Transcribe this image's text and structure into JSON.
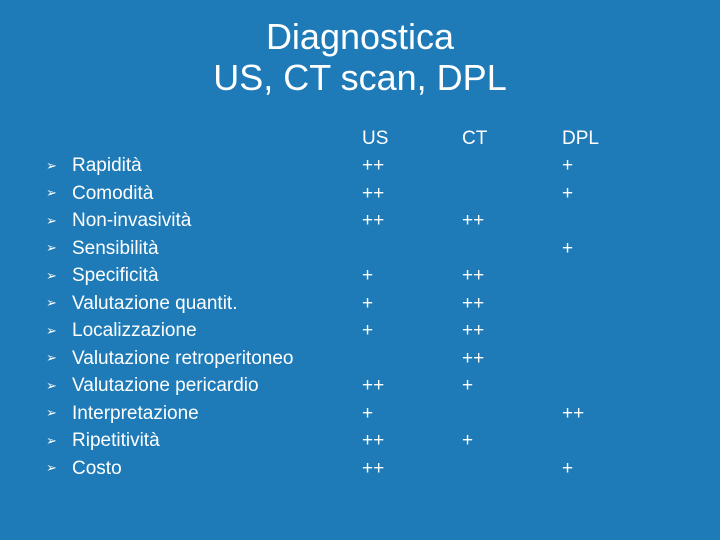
{
  "background_color": "#1e7bb8",
  "text_color": "#ffffff",
  "title_line1": "Diagnostica",
  "title_line2": "US, CT scan, DPL",
  "title_fontsize": 36,
  "body_fontsize": 19,
  "bullet_glyph": "➢",
  "columns": [
    "US",
    "CT",
    "DPL"
  ],
  "rows": [
    {
      "label": "Rapidità",
      "us": "++",
      "ct": "",
      "dpl": "+"
    },
    {
      "label": "Comodità",
      "us": "++",
      "ct": "",
      "dpl": "+"
    },
    {
      "label": "Non-invasività",
      "us": "++",
      "ct": "++",
      "dpl": ""
    },
    {
      "label": "Sensibilità",
      "us": "",
      "ct": "",
      "dpl": "+"
    },
    {
      "label": "Specificità",
      "us": "+",
      "ct": "++",
      "dpl": ""
    },
    {
      "label": "Valutazione quantit.",
      "us": "+",
      "ct": "++",
      "dpl": ""
    },
    {
      "label": "Localizzazione",
      "us": "+",
      "ct": "++",
      "dpl": ""
    },
    {
      "label": "Valutazione retroperitoneo",
      "us": "",
      "ct": "++",
      "dpl": ""
    },
    {
      "label": "Valutazione pericardio",
      "us": "++",
      "ct": "+",
      "dpl": ""
    },
    {
      "label": "Interpretazione",
      "us": "+",
      "ct": "",
      "dpl": "++"
    },
    {
      "label": "Ripetitività",
      "us": "++",
      "ct": "+",
      "dpl": ""
    },
    {
      "label": "Costo",
      "us": "++",
      "ct": "",
      "dpl": "+"
    }
  ]
}
